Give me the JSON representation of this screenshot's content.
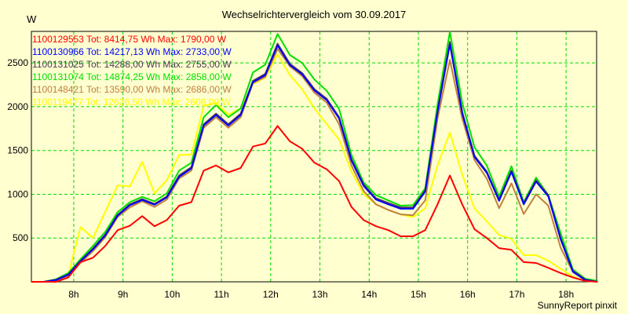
{
  "chart_data": {
    "type": "line",
    "title": "Wechselrichtervergleich vom 30.09.2017",
    "ylabel": "W",
    "xlabel": "",
    "footer": "SunnyReport pinxit",
    "ylim": [
      0,
      2860
    ],
    "xlim": [
      7.14,
      18.62
    ],
    "grid": true,
    "legend_position": "top-left",
    "yticks": [
      500,
      1000,
      1500,
      2000,
      2500
    ],
    "xticks": [
      8,
      9,
      10,
      11,
      12,
      13,
      14,
      15,
      16,
      17,
      18
    ],
    "xtick_labels": [
      "8h",
      "9h",
      "10h",
      "11h",
      "12h",
      "13h",
      "14h",
      "15h",
      "16h",
      "17h",
      "18h"
    ],
    "x_start_hour": 7.14,
    "x_step_hours": 0.25,
    "series": [
      {
        "name": "1100129553",
        "legend": "1100129553 Tot: 8414,75 Wh Max: 1790,00 W",
        "color": "#ff0000",
        "values": [
          0,
          0,
          0,
          50,
          225,
          275,
          410,
          590,
          640,
          750,
          635,
          705,
          870,
          910,
          1270,
          1330,
          1250,
          1300,
          1545,
          1580,
          1780,
          1605,
          1520,
          1360,
          1285,
          1150,
          855,
          705,
          635,
          590,
          520,
          520,
          590,
          885,
          1215,
          885,
          600,
          500,
          385,
          365,
          225,
          215,
          160,
          100,
          50,
          10,
          0
        ]
      },
      {
        "name": "1100130966",
        "legend": "1100130966 Tot: 14217,13 Wh Max: 2733,00 W",
        "color": "#0000ff",
        "values": [
          0,
          0,
          20,
          80,
          235,
          370,
          530,
          755,
          875,
          935,
          880,
          965,
          1200,
          1295,
          1785,
          1905,
          1785,
          1905,
          2280,
          2360,
          2700,
          2475,
          2370,
          2185,
          2075,
          1865,
          1385,
          1095,
          940,
          885,
          835,
          835,
          1030,
          1940,
          2715,
          1925,
          1425,
          1245,
          925,
          1255,
          885,
          1145,
          975,
          485,
          115,
          20,
          0
        ]
      },
      {
        "name": "1100131025",
        "legend": "1100131025 Tot: 14288,00 Wh Max: 2755,00 W",
        "color": "#503a58",
        "values": [
          0,
          0,
          25,
          85,
          240,
          380,
          540,
          765,
          885,
          945,
          890,
          975,
          1215,
          1310,
          1800,
          1920,
          1800,
          1920,
          2295,
          2375,
          2720,
          2490,
          2385,
          2200,
          2090,
          1880,
          1400,
          1110,
          955,
          900,
          850,
          850,
          1045,
          1955,
          2740,
          1940,
          1440,
          1260,
          940,
          1270,
          900,
          1160,
          990,
          500,
          125,
          25,
          0
        ]
      },
      {
        "name": "1100131074",
        "legend": "1100131074 Tot: 14874,25 Wh Max: 2858,00 W",
        "color": "#00e000",
        "values": [
          0,
          0,
          30,
          100,
          260,
          410,
          570,
          795,
          910,
          970,
          920,
          1010,
          1270,
          1360,
          1880,
          2020,
          1880,
          1980,
          2390,
          2480,
          2830,
          2590,
          2500,
          2310,
          2180,
          1975,
          1450,
          1135,
          990,
          930,
          870,
          875,
          1070,
          2030,
          2855,
          2045,
          1535,
          1330,
          975,
          1320,
          910,
          1190,
          990,
          555,
          140,
          35,
          10
        ]
      },
      {
        "name": "1100148421",
        "legend": "1100148421 Tot: 13590,00 Wh Max: 2686,00 W",
        "color": "#c08040",
        "values": [
          0,
          0,
          20,
          70,
          220,
          350,
          510,
          740,
          850,
          920,
          855,
          940,
          1180,
          1270,
          1760,
          1880,
          1760,
          1880,
          2270,
          2340,
          2660,
          2460,
          2350,
          2160,
          2045,
          1800,
          1330,
          1035,
          885,
          820,
          770,
          760,
          930,
          1865,
          2535,
          1865,
          1390,
          1180,
          840,
          1125,
          775,
          1000,
          870,
          390,
          110,
          20,
          0
        ]
      },
      {
        "name": "1100119477",
        "legend": "1100119477 Tot: 12626,50 Wh Max: 2606,00 W",
        "color": "#ffff00",
        "values": [
          0,
          0,
          10,
          80,
          625,
          500,
          800,
          1100,
          1090,
          1370,
          1010,
          1160,
          1450,
          1450,
          2010,
          2045,
          1910,
          1980,
          2260,
          2330,
          2600,
          2360,
          2200,
          1980,
          1800,
          1625,
          1260,
          1000,
          885,
          820,
          770,
          740,
          840,
          1330,
          1705,
          1225,
          840,
          690,
          535,
          490,
          305,
          305,
          240,
          150,
          60,
          10,
          0
        ]
      }
    ]
  },
  "colors": {
    "background": "#ffffd0",
    "grid": "#00dd00",
    "axis": "#000000"
  }
}
